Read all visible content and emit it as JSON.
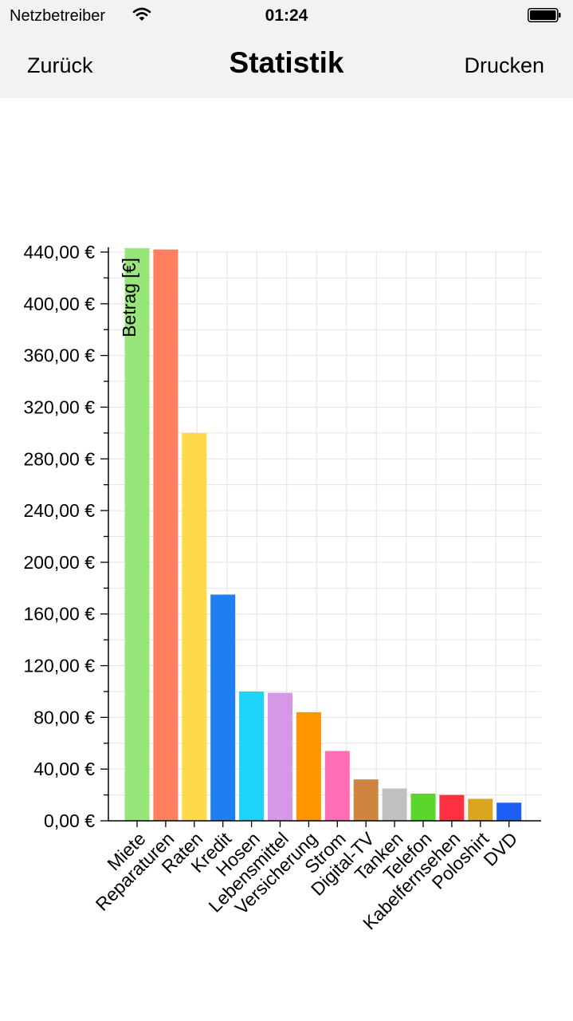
{
  "status_bar": {
    "carrier": "Netzbetreiber",
    "time": "01:24",
    "wifi_icon": "wifi-icon",
    "battery_icon": "battery-icon"
  },
  "nav": {
    "back_label": "Zurück",
    "title": "Statistik",
    "print_label": "Drucken"
  },
  "chart_data": {
    "type": "bar",
    "ylabel": "Betrag [€]",
    "ylim": [
      0,
      440
    ],
    "yticks": [
      0,
      40,
      80,
      120,
      160,
      200,
      240,
      280,
      320,
      360,
      400,
      440
    ],
    "ytick_labels": [
      "0,00 €",
      "40,00 €",
      "80,00 €",
      "120,00 €",
      "160,00 €",
      "200,00 €",
      "240,00 €",
      "280,00 €",
      "320,00 €",
      "360,00 €",
      "400,00 €",
      "440,00 €"
    ],
    "grid": true,
    "categories": [
      "Miete",
      "Reparaturen",
      "Raten",
      "Kredit",
      "Hosen",
      "Lebensmittel",
      "Versicherung",
      "Strom",
      "Digital-TV",
      "Tanken",
      "Telefon",
      "Kabelfernsehen",
      "Poloshirt",
      "DVD"
    ],
    "values": [
      443,
      442,
      300,
      175,
      100,
      99,
      84,
      54,
      32,
      25,
      21,
      20,
      17,
      14
    ],
    "colors": [
      "#98e57b",
      "#ff7f5e",
      "#ffd94a",
      "#1f7ff0",
      "#1ed3f8",
      "#d597e8",
      "#ff9500",
      "#ff6eb4",
      "#cd853f",
      "#c0c0c0",
      "#5bd62a",
      "#ff3140",
      "#daa520",
      "#1e5ff5"
    ]
  }
}
